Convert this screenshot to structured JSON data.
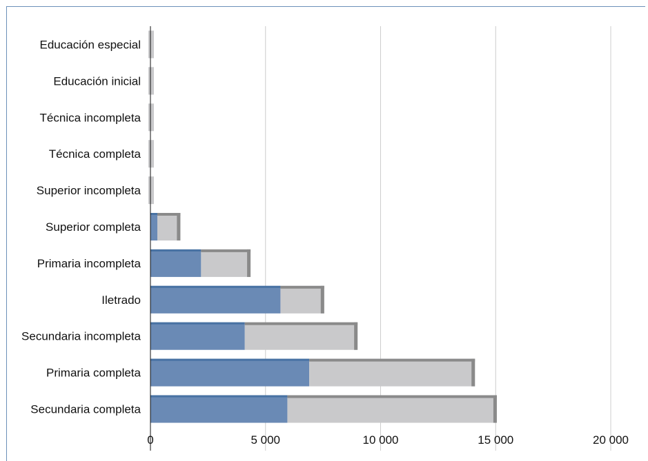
{
  "chart_data": {
    "type": "bar",
    "orientation": "horizontal",
    "stacked": true,
    "categories": [
      "Educación especial",
      "Educación inicial",
      "Técnica incompleta",
      "Técnica completa",
      "Superior incompleta",
      "Superior completa",
      "Primaria incompleta",
      "Iletrado",
      "Secundaria incompleta",
      "Primaria completa",
      "Secundaria completa"
    ],
    "series": [
      {
        "values": [
          0,
          0,
          0,
          0,
          0,
          300,
          2200,
          5650,
          4100,
          6900,
          5950
        ]
      },
      {
        "values": [
          150,
          150,
          150,
          150,
          150,
          1000,
          2150,
          1900,
          4900,
          7200,
          9100
        ]
      }
    ],
    "xlim": [
      0,
      20000
    ],
    "xticks": [
      0,
      5000,
      10000,
      15000,
      20000
    ],
    "xtick_labels": [
      "0",
      "5 000",
      "10 000",
      "15 000",
      "20 000"
    ],
    "grid": "vertical",
    "colors": {
      "series_1": "#6a8ab5",
      "series_1_top": "#4872a3",
      "series_2": "#c9c9cb",
      "series_2_edge": "#8a8a8a",
      "grid": "#cccccc",
      "frame": "#6a8fb8"
    }
  }
}
